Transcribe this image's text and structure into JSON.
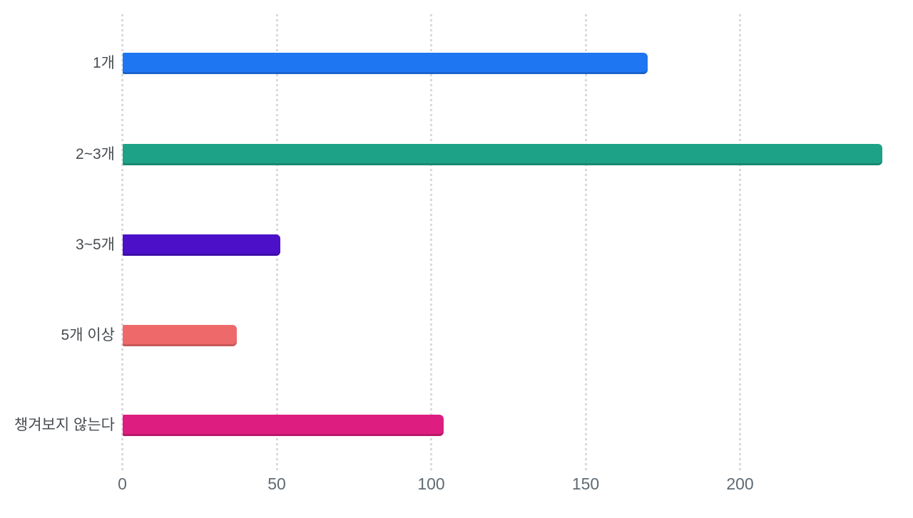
{
  "chart_data": {
    "type": "bar",
    "orientation": "horizontal",
    "title": "",
    "xlabel": "",
    "ylabel": "",
    "categories": [
      "1개",
      "2~3개",
      "3~5개",
      "5개 이상",
      "챙겨보지 않는다"
    ],
    "values": [
      170,
      246,
      51,
      37,
      104
    ],
    "bar_colors": [
      "#1E76F2",
      "#1EA287",
      "#4B10C8",
      "#EE6A6A",
      "#DD1D7F"
    ],
    "xticks": [
      0,
      50,
      100,
      150,
      200
    ],
    "xlim": [
      0,
      250
    ],
    "grid": "vertical-dotted",
    "legend_position": "none",
    "colors": {
      "background": "#ffffff",
      "gridline": "#d9d9d9",
      "tick_label": "#5f6a73",
      "category_label": "#474c51"
    }
  }
}
